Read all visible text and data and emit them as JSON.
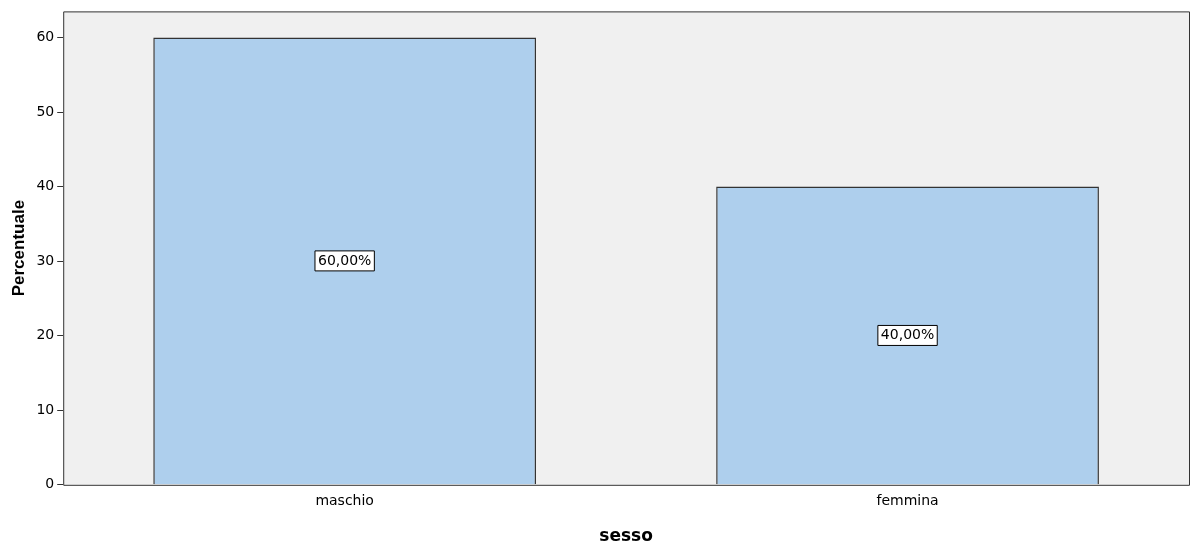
{
  "chart_data": {
    "type": "bar",
    "xlabel": "sesso",
    "ylabel": "Percentuale",
    "categories": [
      "maschio",
      "femmina"
    ],
    "values": [
      60,
      40
    ],
    "color": "#aecfed",
    "value_labels": [
      "60,00%",
      "40,00%"
    ],
    "ylim": [
      0,
      63.5
    ],
    "yticks": [
      0,
      10,
      20,
      30,
      40,
      50,
      60
    ]
  }
}
